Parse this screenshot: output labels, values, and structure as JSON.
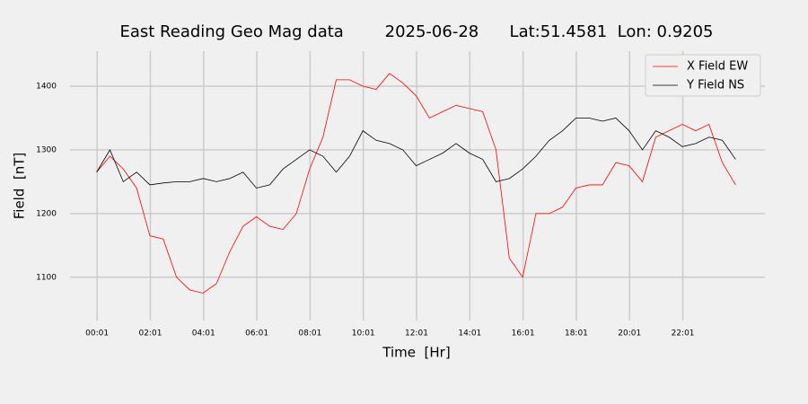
{
  "chart_data": {
    "type": "line",
    "title": "East Reading Geo Mag data        2025-06-28      Lat:51.4581  Lon: 0.9205",
    "x_label": "Time  [Hr]",
    "y_label": "Field  [nT]",
    "x": [
      0,
      0.5,
      1,
      1.5,
      2,
      2.5,
      3,
      3.5,
      4,
      4.5,
      5,
      5.5,
      6,
      6.5,
      7,
      7.5,
      8,
      8.5,
      9,
      9.5,
      10,
      10.5,
      11,
      11.5,
      12,
      12.5,
      13,
      13.5,
      14,
      14.5,
      15,
      15.5,
      16,
      16.5,
      17,
      17.5,
      18,
      18.5,
      19,
      19.5,
      20,
      20.5,
      21,
      21.5,
      22,
      22.5,
      23,
      23.5,
      24
    ],
    "series": [
      {
        "name": "X Field EW",
        "color": "#ff0000",
        "values": [
          1265,
          1290,
          1270,
          1240,
          1165,
          1160,
          1100,
          1080,
          1075,
          1090,
          1140,
          1180,
          1195,
          1180,
          1175,
          1200,
          1270,
          1320,
          1410,
          1410,
          1400,
          1395,
          1420,
          1405,
          1385,
          1350,
          1360,
          1370,
          1365,
          1360,
          1300,
          1130,
          1100,
          1200,
          1200,
          1210,
          1240,
          1245,
          1245,
          1280,
          1275,
          1250,
          1320,
          1330,
          1340,
          1330,
          1340,
          1280,
          1245
        ]
      },
      {
        "name": "Y Field NS",
        "color": "#000000",
        "values": [
          1265,
          1300,
          1250,
          1265,
          1245,
          1248,
          1250,
          1250,
          1255,
          1250,
          1255,
          1265,
          1240,
          1245,
          1270,
          1285,
          1300,
          1290,
          1265,
          1290,
          1330,
          1315,
          1310,
          1300,
          1275,
          1285,
          1295,
          1310,
          1295,
          1285,
          1250,
          1255,
          1270,
          1290,
          1315,
          1330,
          1350,
          1350,
          1345,
          1350,
          1330,
          1300,
          1330,
          1320,
          1305,
          1310,
          1320,
          1315,
          1285
        ]
      }
    ],
    "xlim": [
      -1,
      25.1
    ],
    "xticks": [
      {
        "value": 0.0167,
        "label": "00:01"
      },
      {
        "value": 2.0167,
        "label": "02:01"
      },
      {
        "value": 4.0167,
        "label": "04:01"
      },
      {
        "value": 6.0167,
        "label": "06:01"
      },
      {
        "value": 8.0167,
        "label": "08:01"
      },
      {
        "value": 10.0167,
        "label": "10:01"
      },
      {
        "value": 12.0167,
        "label": "12:01"
      },
      {
        "value": 14.0167,
        "label": "14:01"
      },
      {
        "value": 16.0167,
        "label": "16:01"
      },
      {
        "value": 18.0167,
        "label": "18:01"
      },
      {
        "value": 20.0167,
        "label": "20:01"
      },
      {
        "value": 22.0167,
        "label": "22:01"
      }
    ],
    "ylim": [
      1032,
      1455
    ],
    "yticks": [
      1100,
      1200,
      1300,
      1400
    ],
    "grid": true,
    "legend": "upper right"
  }
}
